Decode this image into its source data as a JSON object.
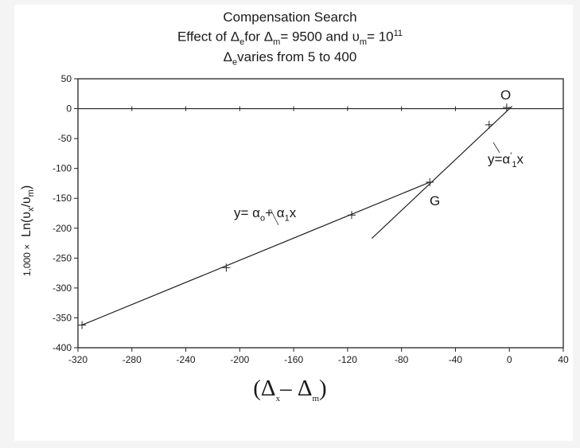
{
  "chart_data": {
    "type": "line",
    "title_lines": [
      "Compensation Search",
      {
        "pre": "Effect of ",
        "d1": "Δ",
        "d1_sub": "e",
        "mid1": "for ",
        "d2": "Δ",
        "d2_sub": "m",
        "mid2": "= 9500 and ",
        "u": "υ",
        "u_sub": "m",
        "mid3": "= 10",
        "exp": "11"
      },
      {
        "d": "Δ",
        "d_sub": "e",
        "post": "varies from 5 to 400"
      }
    ],
    "xlabel": {
      "open": "(Δ",
      "sub1": "x",
      "minus": "– Δ",
      "sub2": "m",
      "close": ")"
    },
    "ylabel": {
      "prefix": "1,000 ×",
      "text": "Ln(υ",
      "sub1": "x",
      "slash": "/υ",
      "sub2": "m",
      "close": ")"
    },
    "xlim": [
      -320,
      40
    ],
    "ylim": [
      -400,
      50
    ],
    "xticks": [
      -320,
      -280,
      -240,
      -200,
      -160,
      -120,
      -80,
      -40,
      0,
      40
    ],
    "yticks": [
      50,
      0,
      -50,
      -100,
      -150,
      -200,
      -250,
      -300,
      -350,
      -400
    ],
    "zero_line_ticks": [
      -280,
      -240,
      -200,
      -160,
      -120,
      -80,
      -40
    ],
    "series": [
      {
        "id": "upper-line",
        "x": [
          -317,
          -59
        ],
        "y": [
          -362,
          -123
        ],
        "markers_x": [
          -317,
          -210,
          -117,
          -59
        ],
        "markers_y": [
          -362,
          -266,
          -178,
          -123
        ]
      },
      {
        "id": "lower-line",
        "x": [
          -102,
          2
        ],
        "y": [
          -217,
          4
        ],
        "markers_x": [
          -15,
          -2
        ],
        "markers_y": [
          -27,
          2
        ]
      }
    ],
    "annotations": {
      "eq_upper": {
        "pre": "y= α",
        "sub": "o",
        "mid": "+ α",
        "sub2": "1",
        "post": "x"
      },
      "eq_lower": {
        "pre": "y=α",
        "sup": "'",
        "sub": "1",
        "post": "x"
      },
      "point_G": "G",
      "point_O": "O"
    }
  }
}
